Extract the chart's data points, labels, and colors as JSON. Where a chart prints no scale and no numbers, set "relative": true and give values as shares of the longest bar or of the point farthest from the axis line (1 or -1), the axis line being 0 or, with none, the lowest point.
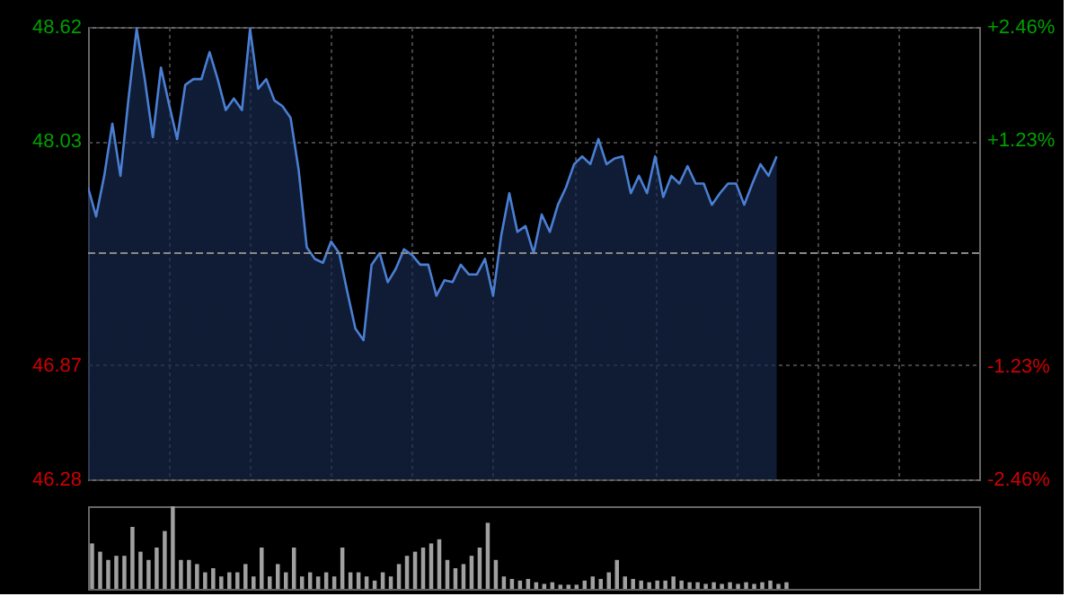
{
  "chart_data": [
    {
      "type": "area",
      "categories": [
        null,
        null,
        null,
        null,
        null,
        null,
        null,
        null,
        null,
        null,
        null,
        null,
        null,
        null,
        null,
        null,
        null,
        null,
        null,
        null,
        null,
        null,
        null,
        null,
        null,
        null,
        null,
        null,
        null,
        null,
        null,
        null,
        null,
        null,
        null,
        null,
        null,
        null,
        null,
        null,
        null,
        null,
        null,
        null,
        null,
        null,
        null,
        null,
        null,
        null,
        null,
        null,
        null,
        null,
        null,
        null,
        null,
        null,
        null,
        null,
        null,
        null,
        null,
        null,
        null,
        null,
        null,
        null,
        null,
        null,
        null,
        null,
        null,
        null,
        null,
        null,
        null,
        null,
        null,
        null,
        null,
        null,
        null,
        null,
        null,
        null,
        null,
        null,
        null,
        null,
        null,
        null,
        null,
        null,
        null,
        null,
        null,
        null,
        null,
        null,
        null,
        null,
        null,
        null,
        null,
        null,
        null,
        null,
        null,
        null,
        null
      ],
      "series": [
        {
          "color": "#4a7fd4",
          "values": [
            47.79,
            47.64,
            47.85,
            48.12,
            47.85,
            48.25,
            48.61,
            48.35,
            48.05,
            48.41,
            48.22,
            48.04,
            48.32,
            48.35,
            48.35,
            48.49,
            48.35,
            48.19,
            48.25,
            48.19,
            48.61,
            48.3,
            48.35,
            48.24,
            48.21,
            48.15,
            47.88,
            47.48,
            47.42,
            47.4,
            47.51,
            47.45,
            47.25,
            47.06,
            47.0,
            47.39,
            47.45,
            47.3,
            47.37,
            47.47,
            47.44,
            47.39,
            47.39,
            47.23,
            47.31,
            47.3,
            47.39,
            47.34,
            47.34,
            47.42,
            47.23,
            47.54,
            47.76,
            47.56,
            47.59,
            47.45,
            47.65,
            47.56,
            47.7,
            47.79,
            47.91,
            47.95,
            47.91,
            48.04,
            47.91,
            47.94,
            47.95,
            47.76,
            47.85,
            47.76,
            47.95,
            47.74,
            47.85,
            47.81,
            47.9,
            47.81,
            47.81,
            47.7,
            47.76,
            47.81,
            47.81,
            47.7,
            47.81,
            47.91,
            47.85,
            47.95,
            null,
            null,
            null,
            null,
            null,
            null,
            null,
            null,
            null,
            null,
            null,
            null,
            null,
            null,
            null,
            null,
            null,
            null,
            null,
            null,
            null,
            null,
            null,
            null,
            null
          ]
        }
      ],
      "ylim": [
        46.28,
        48.62
      ],
      "yticks": [
        46.28,
        46.87,
        48.03,
        48.62
      ],
      "y2lim": [
        -2.46,
        2.46
      ],
      "y2ticks": [
        {
          "value": -2.46,
          "label": "-2.46%"
        },
        {
          "value": -1.23,
          "label": "-1.23%"
        },
        {
          "value": 1.23,
          "label": "+1.23%"
        },
        {
          "value": 2.46,
          "label": "+2.46%"
        }
      ],
      "ref_lines": [
        {
          "axis": "y",
          "value": 47.45,
          "color": "#888888",
          "line_style": "dashed"
        }
      ],
      "grid": true,
      "tick_labels": "y"
    },
    {
      "type": "bar",
      "relative": true,
      "color": "#a0a0a0",
      "categories": [
        null,
        null,
        null,
        null,
        null,
        null,
        null,
        null,
        null,
        null,
        null,
        null,
        null,
        null,
        null,
        null,
        null,
        null,
        null,
        null,
        null,
        null,
        null,
        null,
        null,
        null,
        null,
        null,
        null,
        null,
        null,
        null,
        null,
        null,
        null,
        null,
        null,
        null,
        null,
        null,
        null,
        null,
        null,
        null,
        null,
        null,
        null,
        null,
        null,
        null,
        null,
        null,
        null,
        null,
        null,
        null,
        null,
        null,
        null,
        null,
        null,
        null,
        null,
        null,
        null,
        null,
        null,
        null,
        null,
        null,
        null,
        null,
        null,
        null,
        null,
        null,
        null,
        null,
        null,
        null,
        null,
        null,
        null,
        null,
        null,
        null,
        null
      ],
      "values": [
        0.55,
        0.45,
        0.35,
        0.4,
        0.4,
        0.75,
        0.45,
        0.35,
        0.5,
        0.7,
        1.0,
        0.35,
        0.35,
        0.3,
        0.2,
        0.25,
        0.15,
        0.2,
        0.2,
        0.3,
        0.15,
        0.5,
        0.15,
        0.3,
        0.2,
        0.5,
        0.15,
        0.2,
        0.15,
        0.2,
        0.15,
        0.5,
        0.2,
        0.2,
        0.15,
        0.1,
        0.2,
        0.15,
        0.3,
        0.4,
        0.45,
        0.5,
        0.55,
        0.6,
        0.35,
        0.25,
        0.3,
        0.4,
        0.5,
        0.8,
        0.35,
        0.15,
        0.12,
        0.1,
        0.12,
        0.08,
        0.06,
        0.08,
        0.05,
        0.05,
        0.05,
        0.1,
        0.15,
        0.12,
        0.2,
        0.35,
        0.15,
        0.12,
        0.1,
        0.08,
        0.1,
        0.1,
        0.15,
        0.1,
        0.08,
        0.08,
        0.06,
        0.08,
        0.06,
        0.08,
        0.06,
        0.08,
        0.06,
        0.08,
        0.1,
        0.06,
        0.08
      ],
      "tick_labels": false
    }
  ]
}
